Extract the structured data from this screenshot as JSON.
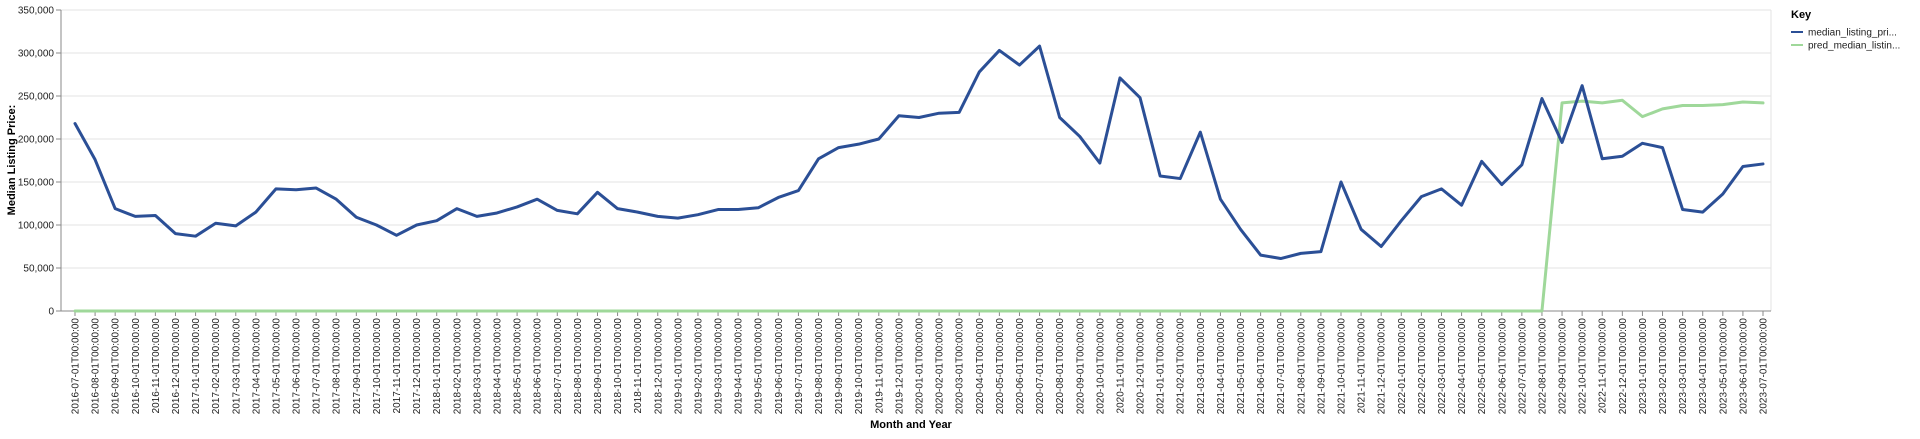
{
  "chart_data": {
    "type": "line",
    "title": "",
    "xlabel": "Month and Year",
    "ylabel": "Median Listing Price:",
    "ylim": [
      0,
      350000
    ],
    "yticks": [
      "0",
      "50,000",
      "100,000",
      "150,000",
      "200,000",
      "250,000",
      "300,000",
      "350,000"
    ],
    "grid": "horizontal",
    "legend_title": "Key",
    "legend_position": "top-right",
    "categories": [
      "2016-07-01T00:00:00",
      "2016-08-01T00:00:00",
      "2016-09-01T00:00:00",
      "2016-10-01T00:00:00",
      "2016-11-01T00:00:00",
      "2016-12-01T00:00:00",
      "2017-01-01T00:00:00",
      "2017-02-01T00:00:00",
      "2017-03-01T00:00:00",
      "2017-04-01T00:00:00",
      "2017-05-01T00:00:00",
      "2017-06-01T00:00:00",
      "2017-07-01T00:00:00",
      "2017-08-01T00:00:00",
      "2017-09-01T00:00:00",
      "2017-10-01T00:00:00",
      "2017-11-01T00:00:00",
      "2017-12-01T00:00:00",
      "2018-01-01T00:00:00",
      "2018-02-01T00:00:00",
      "2018-03-01T00:00:00",
      "2018-04-01T00:00:00",
      "2018-05-01T00:00:00",
      "2018-06-01T00:00:00",
      "2018-07-01T00:00:00",
      "2018-08-01T00:00:00",
      "2018-09-01T00:00:00",
      "2018-10-01T00:00:00",
      "2018-11-01T00:00:00",
      "2018-12-01T00:00:00",
      "2019-01-01T00:00:00",
      "2019-02-01T00:00:00",
      "2019-03-01T00:00:00",
      "2019-04-01T00:00:00",
      "2019-05-01T00:00:00",
      "2019-06-01T00:00:00",
      "2019-07-01T00:00:00",
      "2019-08-01T00:00:00",
      "2019-09-01T00:00:00",
      "2019-10-01T00:00:00",
      "2019-11-01T00:00:00",
      "2019-12-01T00:00:00",
      "2020-01-01T00:00:00",
      "2020-02-01T00:00:00",
      "2020-03-01T00:00:00",
      "2020-04-01T00:00:00",
      "2020-05-01T00:00:00",
      "2020-06-01T00:00:00",
      "2020-07-01T00:00:00",
      "2020-08-01T00:00:00",
      "2020-09-01T00:00:00",
      "2020-10-01T00:00:00",
      "2020-11-01T00:00:00",
      "2020-12-01T00:00:00",
      "2021-01-01T00:00:00",
      "2021-02-01T00:00:00",
      "2021-03-01T00:00:00",
      "2021-04-01T00:00:00",
      "2021-05-01T00:00:00",
      "2021-06-01T00:00:00",
      "2021-07-01T00:00:00",
      "2021-08-01T00:00:00",
      "2021-09-01T00:00:00",
      "2021-10-01T00:00:00",
      "2021-11-01T00:00:00",
      "2021-12-01T00:00:00",
      "2022-01-01T00:00:00",
      "2022-02-01T00:00:00",
      "2022-03-01T00:00:00",
      "2022-04-01T00:00:00",
      "2022-05-01T00:00:00",
      "2022-06-01T00:00:00",
      "2022-07-01T00:00:00",
      "2022-08-01T00:00:00",
      "2022-09-01T00:00:00",
      "2022-10-01T00:00:00",
      "2022-11-01T00:00:00",
      "2022-12-01T00:00:00",
      "2023-01-01T00:00:00",
      "2023-02-01T00:00:00",
      "2023-03-01T00:00:00",
      "2023-04-01T00:00:00",
      "2023-05-01T00:00:00",
      "2023-06-01T00:00:00",
      "2023-07-01T00:00:00"
    ],
    "series": [
      {
        "name": "median_listing_pri...",
        "color": "#2b4f96",
        "values": [
          218000,
          176000,
          119000,
          110000,
          111000,
          90000,
          87000,
          102000,
          99000,
          115000,
          142000,
          141000,
          143000,
          130000,
          109000,
          100000,
          88000,
          100000,
          105000,
          119000,
          110000,
          114000,
          121000,
          130000,
          117000,
          113000,
          138000,
          119000,
          115000,
          110000,
          108000,
          112000,
          118000,
          118000,
          120000,
          132000,
          140000,
          177000,
          190000,
          194000,
          200000,
          227000,
          225000,
          230000,
          231000,
          278000,
          303000,
          286000,
          308000,
          225000,
          203000,
          172000,
          271000,
          248000,
          157000,
          154000,
          208000,
          130000,
          95000,
          65000,
          61000,
          67000,
          69000,
          150000,
          95000,
          75000,
          105000,
          133000,
          142000,
          123000,
          174000,
          147000,
          170000,
          247000,
          196000,
          262000,
          177000,
          180000,
          195000,
          190000,
          118000,
          115000,
          136000,
          168000,
          171000
        ]
      },
      {
        "name": "pred_median_listin...",
        "color": "#9fd89a",
        "values": [
          0,
          0,
          0,
          0,
          0,
          0,
          0,
          0,
          0,
          0,
          0,
          0,
          0,
          0,
          0,
          0,
          0,
          0,
          0,
          0,
          0,
          0,
          0,
          0,
          0,
          0,
          0,
          0,
          0,
          0,
          0,
          0,
          0,
          0,
          0,
          0,
          0,
          0,
          0,
          0,
          0,
          0,
          0,
          0,
          0,
          0,
          0,
          0,
          0,
          0,
          0,
          0,
          0,
          0,
          0,
          0,
          0,
          0,
          0,
          0,
          0,
          0,
          0,
          0,
          0,
          0,
          0,
          0,
          0,
          0,
          0,
          0,
          0,
          0,
          242000,
          244000,
          242000,
          245000,
          226000,
          235000,
          239000,
          239000,
          240000,
          243000,
          242000
        ]
      }
    ]
  }
}
